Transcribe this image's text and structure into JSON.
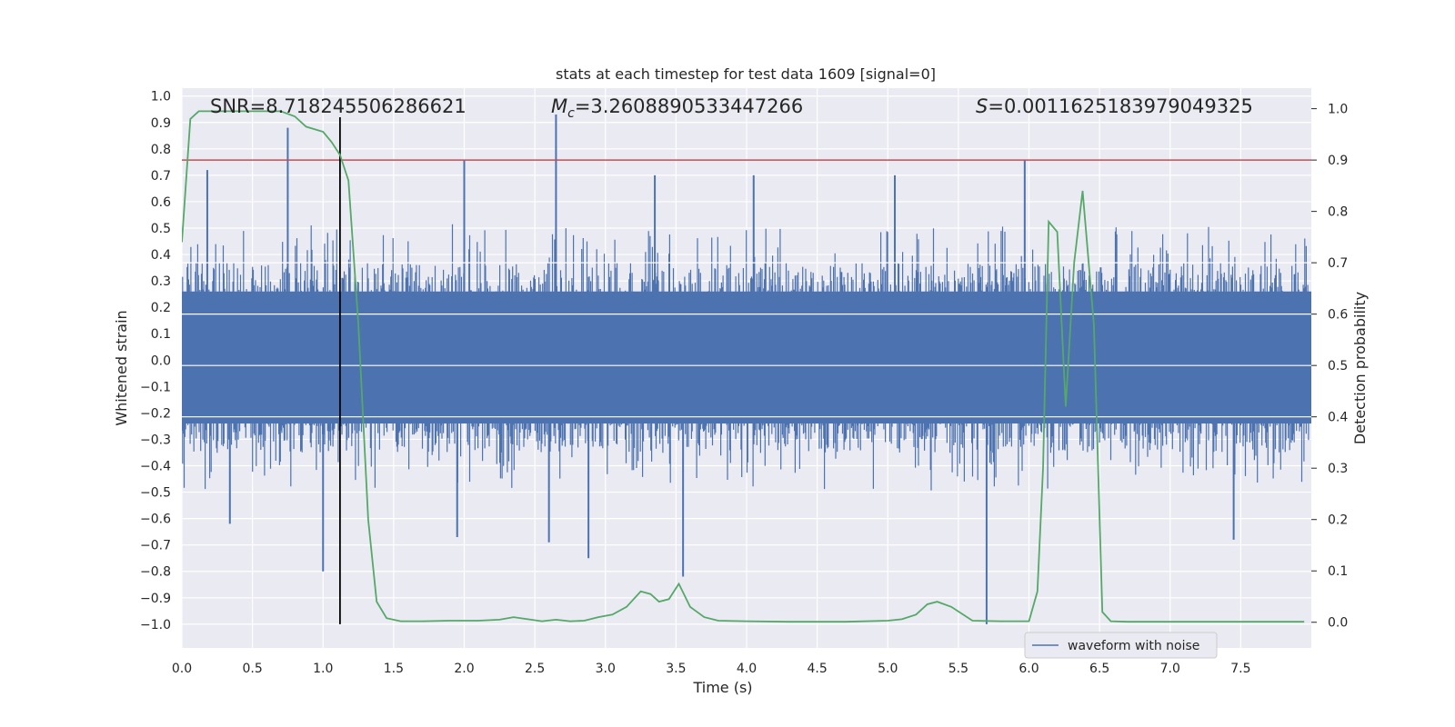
{
  "chart_data": {
    "type": "line",
    "title": "stats at each timestep for test data 1609 [signal=0]",
    "xlabel": "Time (s)",
    "ylabel_left": "Whitened strain",
    "ylabel_right": "Detection probability",
    "xlim": [
      0.0,
      8.0
    ],
    "ylim_left": [
      -1.09,
      1.03
    ],
    "ylim_right": [
      -0.05,
      1.04
    ],
    "x_ticks": [
      "0.0",
      "0.5",
      "1.0",
      "1.5",
      "2.0",
      "2.5",
      "3.0",
      "3.5",
      "4.0",
      "4.5",
      "5.0",
      "5.5",
      "6.0",
      "6.5",
      "7.0",
      "7.5"
    ],
    "y_ticks_left": [
      "1.0",
      "0.9",
      "0.8",
      "0.7",
      "0.6",
      "0.5",
      "0.4",
      "0.3",
      "0.2",
      "0.1",
      "0.0",
      "−0.1",
      "−0.2",
      "−0.3",
      "−0.4",
      "−0.5",
      "−0.6",
      "−0.7",
      "−0.8",
      "−0.9",
      "−1.0"
    ],
    "y_ticks_right": [
      "1.0",
      "0.9",
      "0.8",
      "0.7",
      "0.6",
      "0.5",
      "0.4",
      "0.3",
      "0.2",
      "0.1",
      "0.0"
    ],
    "grid": true,
    "legend_position": "lower-right",
    "annotations": {
      "snr": "SNR=8.718245506286621",
      "mc_prefix": "M",
      "mc_sub": "c",
      "mc_value": "=3.2608890533447266",
      "s_prefix": "S",
      "s_value": "=0.0011625183979049325"
    },
    "threshold_right": 0.9,
    "vline_time": 1.12,
    "series": [
      {
        "name": "waveform with noise",
        "axis": "left",
        "color": "#4c72b0",
        "envelope_typical": 0.38,
        "envelope_min_typical": -0.36,
        "spikes": [
          {
            "t": 0.75,
            "v": 0.88
          },
          {
            "t": 0.18,
            "v": 0.72
          },
          {
            "t": 2.0,
            "v": 0.76
          },
          {
            "t": 2.65,
            "v": 0.93
          },
          {
            "t": 5.97,
            "v": 0.76
          },
          {
            "t": 3.35,
            "v": 0.7
          },
          {
            "t": 4.05,
            "v": 0.7
          },
          {
            "t": 5.05,
            "v": 0.7
          },
          {
            "t": 1.0,
            "v": -0.8
          },
          {
            "t": 3.55,
            "v": -0.82
          },
          {
            "t": 5.7,
            "v": -1.0
          },
          {
            "t": 2.88,
            "v": -0.75
          },
          {
            "t": 0.34,
            "v": -0.62
          },
          {
            "t": 2.6,
            "v": -0.69
          },
          {
            "t": 7.45,
            "v": -0.68
          },
          {
            "t": 1.95,
            "v": -0.67
          }
        ]
      },
      {
        "name": "detection probability",
        "axis": "right",
        "color": "#55a868",
        "x": [
          0.0,
          0.06,
          0.12,
          0.2,
          0.3,
          0.4,
          0.5,
          0.6,
          0.7,
          0.8,
          0.88,
          1.0,
          1.06,
          1.12,
          1.18,
          1.25,
          1.32,
          1.38,
          1.45,
          1.55,
          1.7,
          1.9,
          2.1,
          2.25,
          2.35,
          2.45,
          2.55,
          2.65,
          2.75,
          2.85,
          2.95,
          3.05,
          3.15,
          3.25,
          3.32,
          3.38,
          3.45,
          3.52,
          3.6,
          3.7,
          3.8,
          4.0,
          4.3,
          4.7,
          5.0,
          5.1,
          5.2,
          5.28,
          5.35,
          5.45,
          5.6,
          5.8,
          6.0,
          6.06,
          6.1,
          6.14,
          6.2,
          6.26,
          6.32,
          6.38,
          6.46,
          6.52,
          6.58,
          6.7,
          7.0,
          7.4,
          7.95
        ],
        "y": [
          0.74,
          0.98,
          0.995,
          0.995,
          0.995,
          0.995,
          0.995,
          0.995,
          0.995,
          0.985,
          0.965,
          0.955,
          0.935,
          0.91,
          0.86,
          0.58,
          0.2,
          0.04,
          0.008,
          0.002,
          0.002,
          0.003,
          0.003,
          0.005,
          0.01,
          0.006,
          0.002,
          0.005,
          0.002,
          0.003,
          0.01,
          0.015,
          0.03,
          0.06,
          0.055,
          0.04,
          0.045,
          0.075,
          0.03,
          0.01,
          0.003,
          0.002,
          0.001,
          0.001,
          0.003,
          0.006,
          0.015,
          0.035,
          0.04,
          0.03,
          0.003,
          0.002,
          0.002,
          0.06,
          0.3,
          0.78,
          0.76,
          0.42,
          0.7,
          0.84,
          0.58,
          0.02,
          0.002,
          0.001,
          0.001,
          0.001,
          0.001
        ]
      }
    ]
  }
}
